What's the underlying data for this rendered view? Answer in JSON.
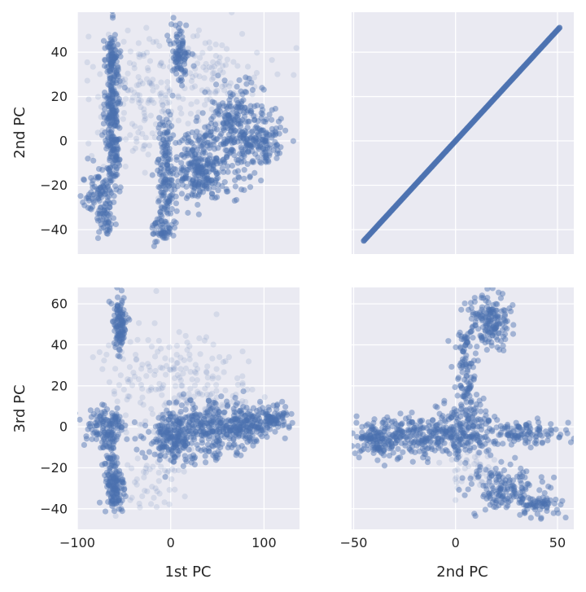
{
  "chart_data": {
    "type": "scatter",
    "layout": "2x2 pair grid",
    "style": {
      "background": "#EAEAF2",
      "grid": true,
      "grid_color": "#FFFFFF",
      "point_color": "#4C72B0"
    },
    "x_axis_labels": [
      "1st PC",
      "2nd PC"
    ],
    "y_axis_labels": [
      "2nd PC",
      "3rd PC"
    ],
    "panels": [
      {
        "id": "pc1-vs-pc2",
        "xlabel": "",
        "ylabel": "2nd PC",
        "xlim": [
          -100,
          138
        ],
        "ylim": [
          -51,
          58
        ],
        "xticks": [
          -100,
          0,
          100
        ],
        "yticks": [
          -40,
          -20,
          0,
          20,
          40
        ],
        "clusters": [
          {
            "cx": -62,
            "cy": 10,
            "sx": 4,
            "sy": 18,
            "n": 260,
            "dense": true
          },
          {
            "cx": -63,
            "cy": 38,
            "sx": 3,
            "sy": 5,
            "n": 60,
            "dense": true
          },
          {
            "cx": -78,
            "cy": -22,
            "sx": 10,
            "sy": 5,
            "n": 70,
            "dense": true
          },
          {
            "cx": -70,
            "cy": -35,
            "sx": 5,
            "sy": 5,
            "n": 50,
            "dense": true
          },
          {
            "cx": 10,
            "cy": 40,
            "sx": 5,
            "sy": 7,
            "n": 90,
            "dense": true
          },
          {
            "cx": -5,
            "cy": -15,
            "sx": 5,
            "sy": 14,
            "n": 160,
            "dense": true
          },
          {
            "cx": -10,
            "cy": -40,
            "sx": 5,
            "sy": 3,
            "n": 40,
            "dense": true
          },
          {
            "cx": 30,
            "cy": -10,
            "sx": 12,
            "sy": 8,
            "n": 180,
            "dense": true
          },
          {
            "cx": 70,
            "cy": 5,
            "sx": 15,
            "sy": 10,
            "n": 260,
            "dense": true
          },
          {
            "cx": 100,
            "cy": 0,
            "sx": 12,
            "sy": 6,
            "n": 100,
            "dense": true
          },
          {
            "cx": 40,
            "cy": -18,
            "sx": 20,
            "sy": 5,
            "n": 80,
            "dense": true
          },
          {
            "cx": -30,
            "cy": 20,
            "sx": 30,
            "sy": 15,
            "n": 160,
            "dense": false
          },
          {
            "cx": 40,
            "cy": 25,
            "sx": 30,
            "sy": 12,
            "n": 120,
            "dense": false
          }
        ]
      },
      {
        "id": "pc2-vs-pc2",
        "xlabel": "",
        "ylabel": "",
        "xlim": [
          -51,
          58
        ],
        "ylim": [
          -51,
          58
        ],
        "xticks": [
          -50,
          0,
          50
        ],
        "yticks": [
          -40,
          -20,
          0,
          20,
          40
        ],
        "diagonal": {
          "from": -45,
          "to": 51
        }
      },
      {
        "id": "pc1-vs-pc3",
        "xlabel": "1st PC",
        "ylabel": "3rd PC",
        "xlim": [
          -100,
          138
        ],
        "ylim": [
          -50,
          68
        ],
        "xticks": [
          -100,
          0,
          100
        ],
        "yticks": [
          -40,
          -20,
          0,
          20,
          40,
          60
        ],
        "clusters": [
          {
            "cx": -55,
            "cy": 50,
            "sx": 4,
            "sy": 7,
            "n": 110,
            "dense": true
          },
          {
            "cx": -60,
            "cy": -30,
            "sx": 5,
            "sy": 7,
            "n": 130,
            "dense": true
          },
          {
            "cx": -70,
            "cy": 0,
            "sx": 12,
            "sy": 5,
            "n": 120,
            "dense": true
          },
          {
            "cx": -65,
            "cy": -12,
            "sx": 4,
            "sy": 5,
            "n": 40,
            "dense": true
          },
          {
            "cx": 0,
            "cy": -5,
            "sx": 12,
            "sy": 6,
            "n": 180,
            "dense": true
          },
          {
            "cx": 40,
            "cy": -2,
            "sx": 20,
            "sy": 7,
            "n": 220,
            "dense": true
          },
          {
            "cx": 80,
            "cy": 2,
            "sx": 18,
            "sy": 5,
            "n": 200,
            "dense": true
          },
          {
            "cx": 110,
            "cy": 4,
            "sx": 8,
            "sy": 3,
            "n": 60,
            "dense": true
          },
          {
            "cx": -20,
            "cy": 25,
            "sx": 30,
            "sy": 15,
            "n": 120,
            "dense": false
          },
          {
            "cx": 40,
            "cy": 18,
            "sx": 30,
            "sy": 10,
            "n": 110,
            "dense": false
          },
          {
            "cx": -20,
            "cy": -25,
            "sx": 20,
            "sy": 10,
            "n": 60,
            "dense": false
          }
        ]
      },
      {
        "id": "pc2-vs-pc3",
        "xlabel": "2nd PC",
        "ylabel": "",
        "xlim": [
          -51,
          58
        ],
        "ylim": [
          -50,
          68
        ],
        "xticks": [
          -50,
          0,
          50
        ],
        "yticks": [
          -40,
          -20,
          0,
          20,
          40,
          60
        ],
        "clusters": [
          {
            "cx": -25,
            "cy": -5,
            "sx": 12,
            "sy": 5,
            "n": 260,
            "dense": true
          },
          {
            "cx": 5,
            "cy": -2,
            "sx": 8,
            "sy": 6,
            "n": 180,
            "dense": true
          },
          {
            "cx": 17,
            "cy": 52,
            "sx": 5,
            "sy": 6,
            "n": 160,
            "dense": true
          },
          {
            "cx": 5,
            "cy": 35,
            "sx": 3,
            "sy": 8,
            "n": 70,
            "dense": true
          },
          {
            "cx": 5,
            "cy": 15,
            "sx": 2,
            "sy": 6,
            "n": 40,
            "dense": true
          },
          {
            "cx": 35,
            "cy": -3,
            "sx": 9,
            "sy": 3,
            "n": 110,
            "dense": true
          },
          {
            "cx": 25,
            "cy": -30,
            "sx": 10,
            "sy": 5,
            "n": 150,
            "dense": true
          },
          {
            "cx": 40,
            "cy": -38,
            "sx": 6,
            "sy": 3,
            "n": 60,
            "dense": true
          },
          {
            "cx": 10,
            "cy": -20,
            "sx": 8,
            "sy": 8,
            "n": 50,
            "dense": false
          },
          {
            "cx": -40,
            "cy": -5,
            "sx": 4,
            "sy": 4,
            "n": 60,
            "dense": true
          }
        ]
      }
    ]
  }
}
